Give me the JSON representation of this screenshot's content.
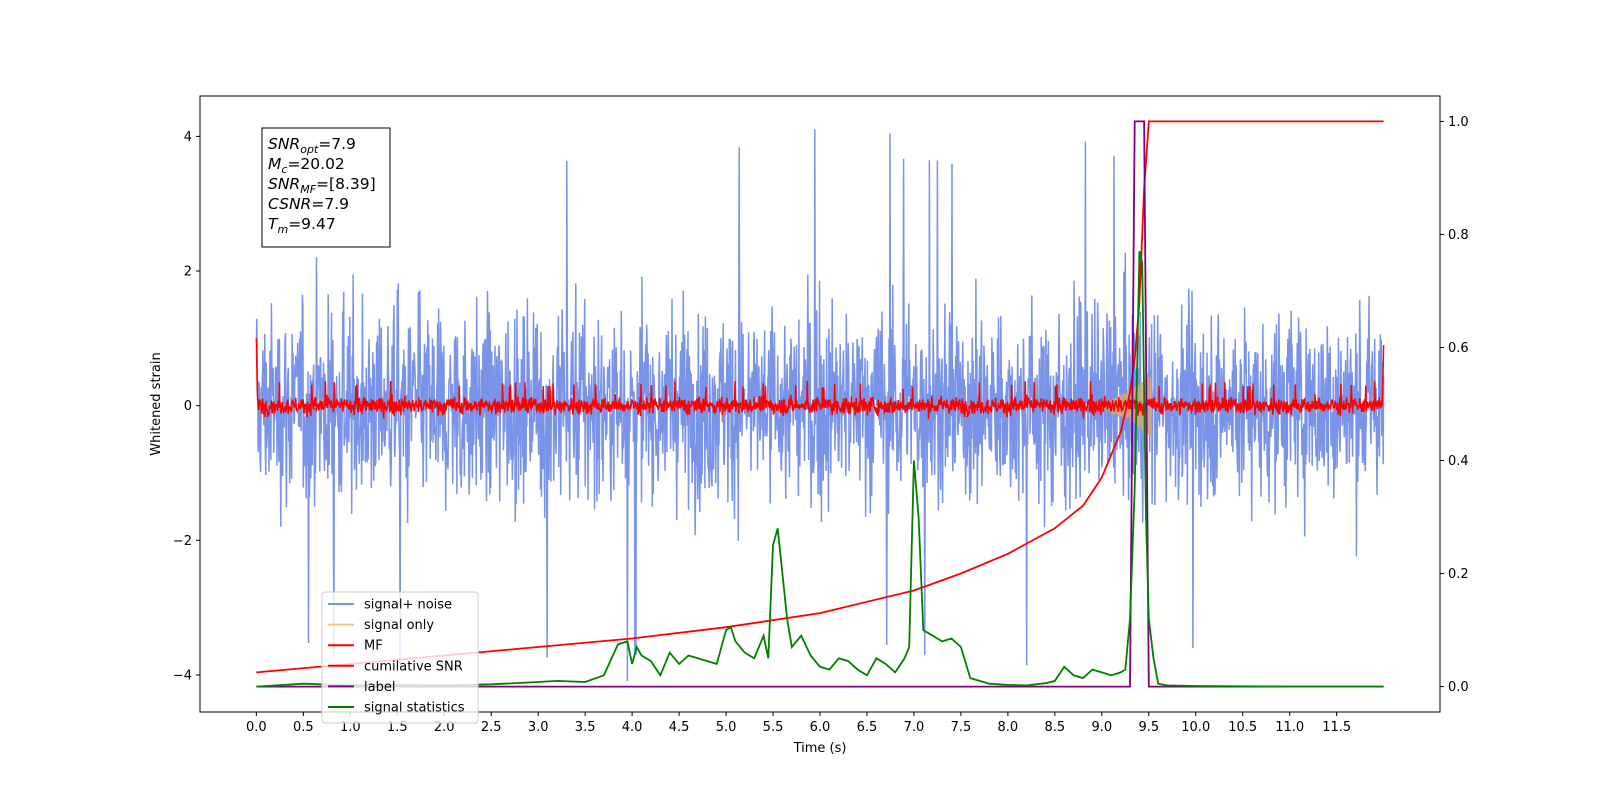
{
  "chart_data": {
    "type": "line",
    "xlabel": "Time (s)",
    "ylabel": "Whitened strain",
    "xlim": [
      -0.6,
      12.6
    ],
    "ylim_left": [
      -4.55,
      4.6
    ],
    "ylim_right": [
      -0.045,
      1.045
    ],
    "xticks": [
      "0.0",
      "0.5",
      "1.0",
      "1.5",
      "2.0",
      "2.5",
      "3.0",
      "3.5",
      "4.0",
      "4.5",
      "5.0",
      "5.5",
      "6.0",
      "6.5",
      "7.0",
      "7.5",
      "8.0",
      "8.5",
      "9.0",
      "9.5",
      "10.0",
      "10.5",
      "11.0",
      "11.5"
    ],
    "yticks_left": [
      "−4",
      "−2",
      "0",
      "2",
      "4"
    ],
    "yticks_right": [
      "0.0",
      "0.2",
      "0.4",
      "0.6",
      "0.8",
      "1.0"
    ],
    "annotation": {
      "lines": [
        {
          "base": "SNR",
          "sub": "opt",
          "rest": "=7.9"
        },
        {
          "base": "M",
          "sub": "c",
          "rest": "=20.02"
        },
        {
          "base": "SNR",
          "sub": "MF",
          "rest": "=[8.39]"
        },
        {
          "base": "CSNR",
          "sub": "",
          "rest": "=7.9"
        },
        {
          "base": "T",
          "sub": "m",
          "rest": "=9.47"
        }
      ]
    },
    "legend": {
      "placement": "lower-left",
      "entries": [
        {
          "label": "signal+ noise",
          "color": "#7893e8"
        },
        {
          "label": "signal only",
          "color": "#f5c578"
        },
        {
          "label": "MF",
          "color": "#ff0000"
        },
        {
          "label": "cumilative SNR",
          "color": "#ff0000"
        },
        {
          "label": "label",
          "color": "#800080"
        },
        {
          "label": "signal statistics",
          "color": "#008000"
        }
      ]
    },
    "series": [
      {
        "name": "signal+ noise",
        "axis": "left",
        "color": "#7893e8",
        "kind": "noise",
        "x_range": [
          0.0,
          12.0
        ],
        "amplitude_range": [
          -4.1,
          4.15
        ]
      },
      {
        "name": "signal only",
        "axis": "left",
        "color": "#d2a679",
        "kind": "chirp",
        "peak_time": 9.47,
        "peak_amplitude": 0.4
      },
      {
        "name": "MF",
        "axis": "left",
        "color": "#ff0000",
        "kind": "noise",
        "x_range": [
          0.0,
          12.0
        ],
        "amplitude_range": [
          -0.2,
          0.4
        ]
      },
      {
        "name": "cumilative SNR",
        "axis": "right",
        "color": "#ff0000",
        "x": [
          0.0,
          1.0,
          2.0,
          3.0,
          4.0,
          5.0,
          6.0,
          7.0,
          7.5,
          8.0,
          8.5,
          8.8,
          9.0,
          9.2,
          9.3,
          9.35,
          9.4,
          9.45,
          9.5,
          10.0,
          11.0,
          12.0
        ],
        "y": [
          0.025,
          0.04,
          0.055,
          0.07,
          0.085,
          0.105,
          0.13,
          0.17,
          0.2,
          0.235,
          0.28,
          0.32,
          0.37,
          0.45,
          0.52,
          0.58,
          0.68,
          0.88,
          1.0,
          1.0,
          1.0,
          1.0
        ]
      },
      {
        "name": "label",
        "axis": "right",
        "color": "#800080",
        "x": [
          0.0,
          9.3,
          9.35,
          9.45,
          9.5,
          12.0
        ],
        "y": [
          0.0,
          0.0,
          1.0,
          1.0,
          0.0,
          0.0
        ]
      },
      {
        "name": "signal statistics",
        "axis": "right",
        "color": "#008000",
        "x": [
          0.0,
          0.5,
          1.0,
          1.5,
          2.0,
          2.5,
          3.0,
          3.2,
          3.5,
          3.7,
          3.85,
          3.95,
          4.0,
          4.05,
          4.1,
          4.2,
          4.3,
          4.4,
          4.5,
          4.6,
          4.7,
          4.8,
          4.9,
          5.0,
          5.05,
          5.1,
          5.2,
          5.3,
          5.4,
          5.45,
          5.5,
          5.55,
          5.6,
          5.65,
          5.7,
          5.8,
          5.9,
          6.0,
          6.1,
          6.2,
          6.3,
          6.4,
          6.5,
          6.6,
          6.7,
          6.8,
          6.9,
          6.95,
          7.0,
          7.05,
          7.1,
          7.2,
          7.3,
          7.4,
          7.5,
          7.6,
          7.7,
          7.8,
          8.0,
          8.2,
          8.4,
          8.5,
          8.6,
          8.7,
          8.8,
          8.9,
          9.0,
          9.1,
          9.2,
          9.25,
          9.3,
          9.35,
          9.4,
          9.43,
          9.47,
          9.5,
          9.55,
          9.6,
          9.7,
          10.0,
          11.0,
          12.0
        ],
        "y": [
          0.0,
          0.005,
          0.002,
          0.003,
          0.002,
          0.004,
          0.008,
          0.01,
          0.008,
          0.02,
          0.075,
          0.08,
          0.04,
          0.07,
          0.055,
          0.045,
          0.02,
          0.06,
          0.04,
          0.055,
          0.05,
          0.045,
          0.04,
          0.1,
          0.105,
          0.08,
          0.06,
          0.05,
          0.09,
          0.05,
          0.25,
          0.28,
          0.2,
          0.12,
          0.07,
          0.09,
          0.055,
          0.035,
          0.03,
          0.05,
          0.045,
          0.03,
          0.02,
          0.05,
          0.04,
          0.025,
          0.05,
          0.07,
          0.4,
          0.3,
          0.1,
          0.09,
          0.08,
          0.085,
          0.07,
          0.015,
          0.01,
          0.005,
          0.003,
          0.002,
          0.006,
          0.01,
          0.035,
          0.02,
          0.015,
          0.03,
          0.025,
          0.02,
          0.025,
          0.03,
          0.12,
          0.35,
          0.77,
          0.75,
          0.3,
          0.12,
          0.05,
          0.005,
          0.002,
          0.001,
          0.0,
          0.0
        ]
      }
    ]
  }
}
